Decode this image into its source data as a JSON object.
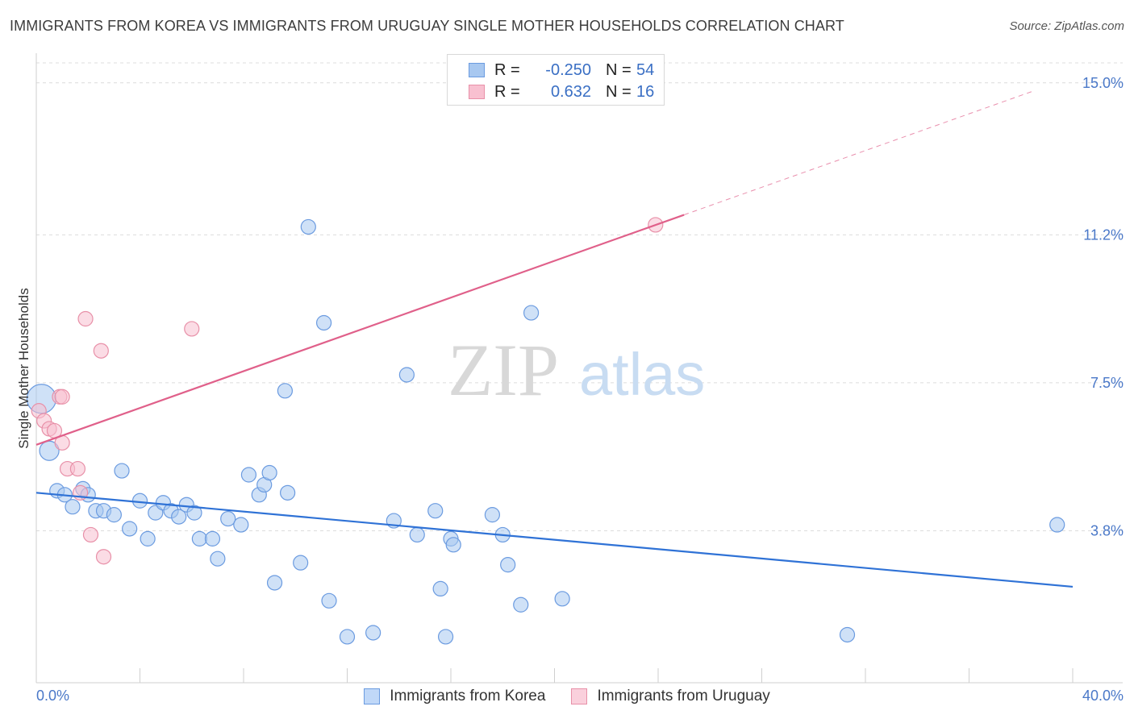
{
  "header": {
    "title": "IMMIGRANTS FROM KOREA VS IMMIGRANTS FROM URUGUAY SINGLE MOTHER HOUSEHOLDS CORRELATION CHART",
    "source": "Source: ZipAtlas.com"
  },
  "watermark": {
    "zip": "ZIP",
    "atlas": "atlas"
  },
  "legend": {
    "rows": [
      {
        "r_label": "R =",
        "r_value": "-0.250",
        "n_label": "N =",
        "n_value": "54",
        "color": "#a8c8f0",
        "border": "#6b9be0"
      },
      {
        "r_label": "R =",
        "r_value": "0.632",
        "n_label": "N =",
        "n_value": "16",
        "color": "#f8c0d0",
        "border": "#e890a8"
      }
    ]
  },
  "bottom_legend": {
    "items": [
      {
        "label": "Immigrants from Korea",
        "color": "#c0d8f8",
        "border": "#6b9be0"
      },
      {
        "label": "Immigrants from Uruguay",
        "color": "#fad0dc",
        "border": "#e890a8"
      }
    ]
  },
  "chart_data": {
    "type": "scatter",
    "xlabel": "",
    "ylabel": "Single Mother Households",
    "xlim": [
      0,
      40
    ],
    "ylim": [
      0,
      15.5
    ],
    "x_tick_labels": [
      "0.0%",
      "40.0%"
    ],
    "y_ticks": [
      3.8,
      7.5,
      11.2,
      15.0
    ],
    "y_tick_labels": [
      "3.8%",
      "7.5%",
      "11.2%",
      "15.0%"
    ],
    "series": [
      {
        "name": "Immigrants from Korea",
        "color": "#a8c8f0",
        "stroke": "#6b9be0",
        "trend_color": "#2f72d6",
        "trend": {
          "x": [
            0,
            40
          ],
          "y": [
            4.75,
            2.4
          ]
        },
        "points": [
          [
            0.5,
            5.8
          ],
          [
            0.8,
            4.8
          ],
          [
            1.1,
            4.7
          ],
          [
            1.4,
            4.4
          ],
          [
            1.8,
            4.85
          ],
          [
            2.0,
            4.7
          ],
          [
            2.3,
            4.3
          ],
          [
            2.6,
            4.3
          ],
          [
            3.0,
            4.2
          ],
          [
            3.3,
            5.3
          ],
          [
            3.6,
            3.85
          ],
          [
            4.0,
            4.55
          ],
          [
            4.3,
            3.6
          ],
          [
            4.6,
            4.25
          ],
          [
            4.9,
            4.5
          ],
          [
            5.2,
            4.3
          ],
          [
            5.5,
            4.15
          ],
          [
            5.8,
            4.45
          ],
          [
            6.1,
            4.25
          ],
          [
            6.3,
            3.6
          ],
          [
            6.8,
            3.6
          ],
          [
            7.0,
            3.1
          ],
          [
            7.4,
            4.1
          ],
          [
            7.9,
            3.95
          ],
          [
            8.2,
            5.2
          ],
          [
            8.6,
            4.7
          ],
          [
            8.8,
            4.95
          ],
          [
            9.0,
            5.25
          ],
          [
            9.2,
            2.5
          ],
          [
            9.6,
            7.3
          ],
          [
            9.7,
            4.75
          ],
          [
            10.2,
            3.0
          ],
          [
            10.5,
            11.4
          ],
          [
            11.1,
            9.0
          ],
          [
            11.3,
            2.05
          ],
          [
            12.0,
            1.15
          ],
          [
            13.0,
            1.25
          ],
          [
            13.8,
            4.05
          ],
          [
            14.3,
            7.7
          ],
          [
            14.7,
            3.7
          ],
          [
            15.4,
            4.3
          ],
          [
            15.6,
            2.35
          ],
          [
            15.8,
            1.15
          ],
          [
            16.0,
            3.6
          ],
          [
            16.1,
            3.45
          ],
          [
            17.6,
            4.2
          ],
          [
            18.0,
            3.7
          ],
          [
            18.2,
            2.95
          ],
          [
            18.7,
            1.95
          ],
          [
            19.1,
            9.25
          ],
          [
            20.3,
            2.1
          ],
          [
            31.3,
            1.2
          ],
          [
            39.4,
            3.95
          ],
          [
            0.2,
            7.1
          ]
        ],
        "sizes": [
          "l",
          "m",
          "m",
          "m",
          "m",
          "m",
          "m",
          "m",
          "m",
          "m",
          "m",
          "m",
          "m",
          "m",
          "m",
          "m",
          "m",
          "m",
          "m",
          "m",
          "m",
          "m",
          "m",
          "m",
          "m",
          "m",
          "m",
          "m",
          "m",
          "m",
          "m",
          "m",
          "m",
          "m",
          "m",
          "m",
          "m",
          "m",
          "m",
          "m",
          "m",
          "m",
          "m",
          "m",
          "m",
          "m",
          "m",
          "m",
          "m",
          "m",
          "m",
          "m",
          "m",
          "xl"
        ]
      },
      {
        "name": "Immigrants from Uruguay",
        "color": "#f8c0d0",
        "stroke": "#e890a8",
        "trend_color": "#e0608a",
        "trend": {
          "x": [
            0,
            25
          ],
          "y": [
            5.95,
            11.7
          ]
        },
        "trend_dashed": {
          "x": [
            25,
            38.5
          ],
          "y": [
            11.7,
            14.8
          ]
        },
        "points": [
          [
            0.1,
            6.8
          ],
          [
            0.3,
            6.55
          ],
          [
            0.5,
            6.35
          ],
          [
            0.7,
            6.3
          ],
          [
            0.9,
            7.15
          ],
          [
            1.0,
            6.0
          ],
          [
            1.2,
            5.35
          ],
          [
            1.6,
            5.35
          ],
          [
            1.7,
            4.75
          ],
          [
            1.9,
            9.1
          ],
          [
            2.1,
            3.7
          ],
          [
            2.5,
            8.3
          ],
          [
            2.6,
            3.15
          ],
          [
            6.0,
            8.85
          ],
          [
            23.9,
            11.45
          ],
          [
            1.0,
            7.15
          ]
        ],
        "sizes": [
          "m",
          "m",
          "m",
          "m",
          "m",
          "m",
          "m",
          "m",
          "m",
          "m",
          "m",
          "m",
          "m",
          "m",
          "m",
          "m"
        ]
      }
    ]
  }
}
